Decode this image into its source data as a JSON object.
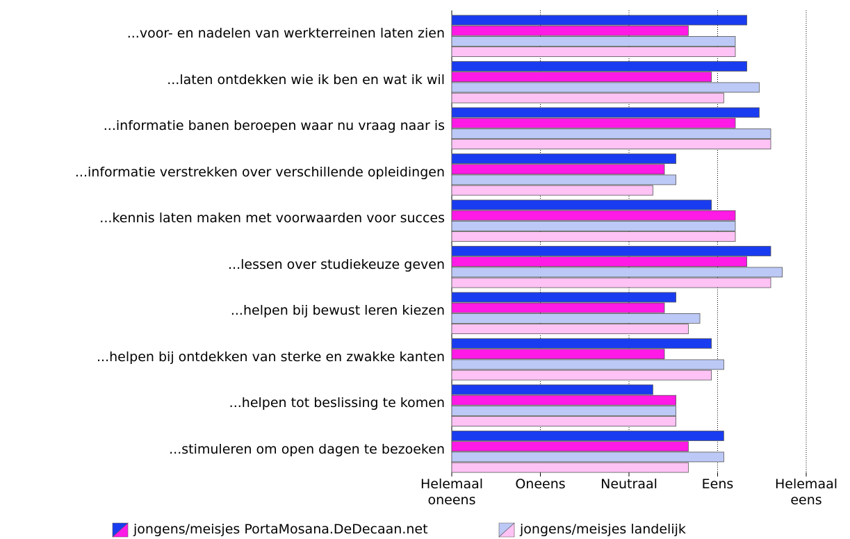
{
  "chart_data": {
    "type": "barh",
    "categories": [
      "...voor- en nadelen van werkterreinen laten zien",
      "...laten ontdekken wie ik ben en wat ik wil",
      "...informatie banen beroepen waar nu vraag naar is",
      "...informatie verstrekken over verschillende opleidingen",
      "...kennis laten maken met voorwaarden voor succes",
      "...lessen over studiekeuze geven",
      "...helpen bij bewust leren kiezen",
      "...helpen bij ontdekken van sterke en zwakke kanten",
      "...helpen tot beslissing te komen",
      "...stimuleren om open dagen te bezoeken"
    ],
    "groups": [
      {
        "name": "jongens/meisjes PortaMosana.DeDecaan.net",
        "series": [
          {
            "color": "#1a3cf0",
            "values": [
              4.33,
              4.33,
              4.47,
              3.53,
              3.93,
              4.6,
              3.53,
              3.93,
              3.27,
              4.07
            ]
          },
          {
            "color": "#ff1ae6",
            "values": [
              3.67,
              3.93,
              4.2,
              3.4,
              4.2,
              4.33,
              3.4,
              3.4,
              3.53,
              3.67
            ]
          }
        ]
      },
      {
        "name": "jongens/meisjes landelijk",
        "series": [
          {
            "color": "#bcc8f5",
            "values": [
              4.2,
              4.47,
              4.6,
              3.53,
              4.2,
              4.73,
              3.8,
              4.07,
              3.53,
              4.07
            ]
          },
          {
            "color": "#ffc2f5",
            "values": [
              4.2,
              4.07,
              4.6,
              3.27,
              4.2,
              4.6,
              3.67,
              3.93,
              3.53,
              3.67
            ]
          }
        ]
      }
    ],
    "xlim": [
      1,
      5
    ],
    "xticks": [
      {
        "value": 1,
        "label": "Helemaal oneens"
      },
      {
        "value": 2,
        "label": "Oneens"
      },
      {
        "value": 3,
        "label": "Neutraal"
      },
      {
        "value": 4,
        "label": "Eens"
      },
      {
        "value": 5,
        "label": "Helemaal eens"
      }
    ],
    "grid": true
  }
}
